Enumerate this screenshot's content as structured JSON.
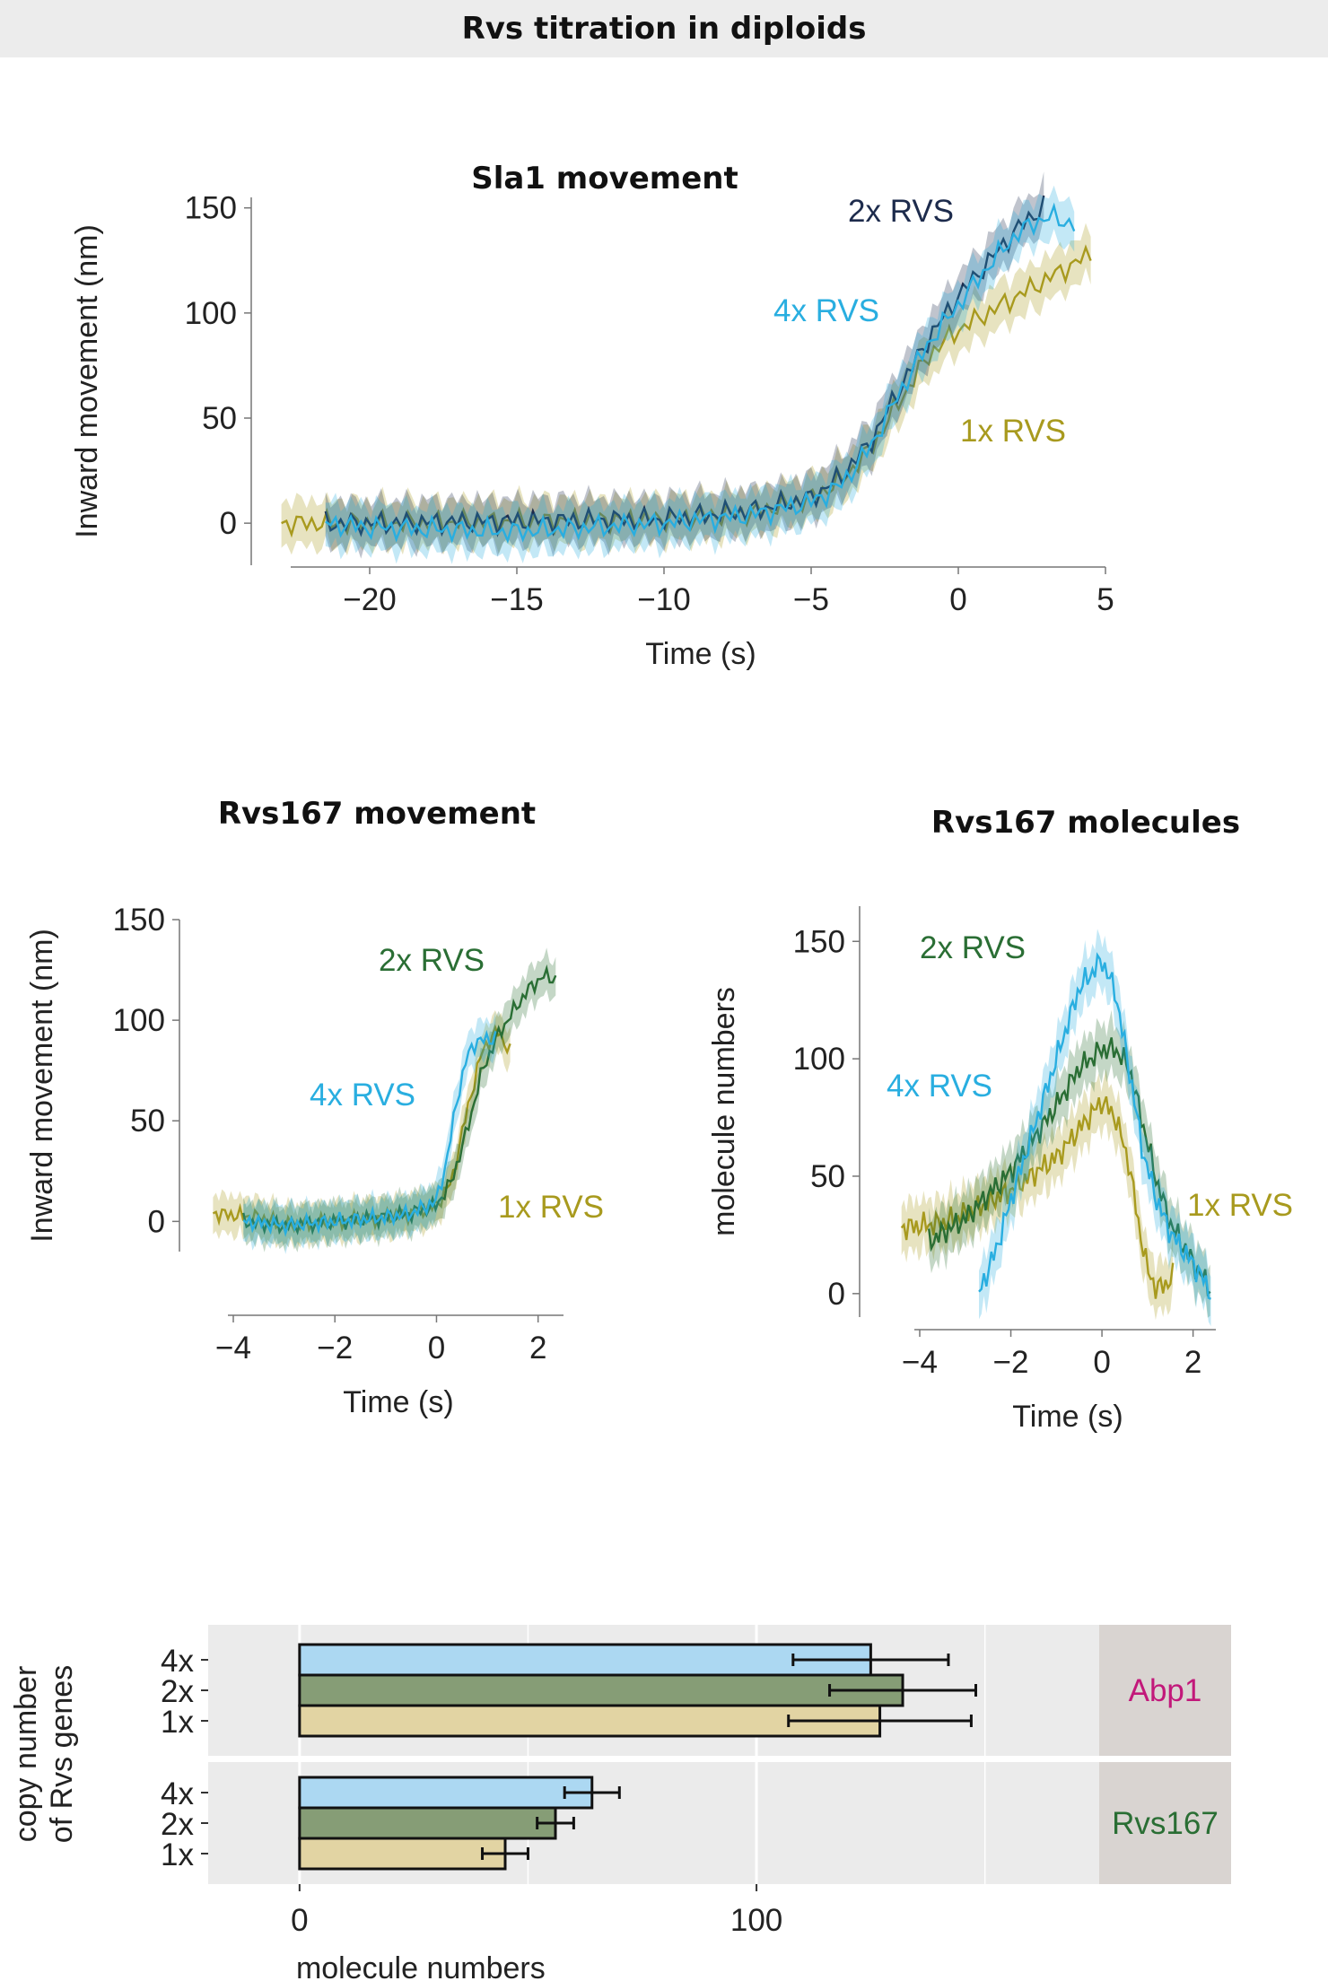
{
  "banner_title": "Rvs titration in diploids",
  "colors": {
    "1x": "#a89a1e",
    "2x_sla1": "#1d2b4c",
    "2x_rvs167": "#2a6e34",
    "4x": "#29aee0",
    "strip_abp1": "#c2187a",
    "strip_rvs167": "#2a6e34"
  },
  "chart_data": [
    {
      "type": "line",
      "title": "Sla1 movement",
      "xlabel": "Time (s)",
      "ylabel": "Inward movement (nm)",
      "xlim": [
        -22.5,
        5
      ],
      "ylim": [
        -20,
        155
      ],
      "xticks": [
        "−20",
        "−15",
        "−10",
        "−5",
        "0",
        "5"
      ],
      "yticks": [
        "0",
        "50",
        "100",
        "150"
      ],
      "legend": [
        "2x RVS",
        "4x RVS",
        "1x RVS"
      ],
      "series": [
        {
          "name": "1x RVS",
          "color": "#a89a1e",
          "x": [
            -23,
            -20,
            -15,
            -10,
            -7,
            -5,
            -4,
            -3,
            -2,
            -1,
            0,
            1,
            2,
            3,
            4,
            4.5
          ],
          "y": [
            0,
            0,
            1,
            2,
            5,
            12,
            20,
            35,
            58,
            80,
            92,
            100,
            108,
            116,
            124,
            128
          ]
        },
        {
          "name": "2x RVS",
          "color": "#1d2b4c",
          "x": [
            -21.5,
            -20,
            -15,
            -10,
            -7,
            -5,
            -4,
            -3,
            -2,
            -1,
            0,
            1,
            2,
            3
          ],
          "y": [
            0,
            0,
            1,
            2,
            6,
            12,
            22,
            38,
            64,
            88,
            108,
            124,
            140,
            152
          ]
        },
        {
          "name": "4x RVS",
          "color": "#29aee0",
          "x": [
            -21.5,
            -20,
            -15,
            -10,
            -7,
            -5,
            -4,
            -3,
            -2,
            -1,
            0,
            1,
            2,
            3,
            4
          ],
          "y": [
            0,
            -2,
            -4,
            0,
            4,
            10,
            18,
            36,
            62,
            86,
            104,
            122,
            138,
            146,
            142
          ]
        }
      ]
    },
    {
      "type": "line",
      "title": "Rvs167 movement",
      "xlabel": "Time (s)",
      "ylabel": "Inward movement (nm)",
      "xlim": [
        -4,
        2.5
      ],
      "ylim": [
        -15,
        150
      ],
      "xticks": [
        "−4",
        "−2",
        "0",
        "2"
      ],
      "yticks": [
        "0",
        "50",
        "100",
        "150"
      ],
      "legend": [
        "2x RVS",
        "4x RVS",
        "1x RVS"
      ],
      "series": [
        {
          "name": "1x RVS",
          "color": "#a89a1e",
          "x": [
            -4.4,
            -3.5,
            -3,
            -2,
            -1,
            -0.5,
            0,
            0.3,
            0.6,
            0.9,
            1.2,
            1.5
          ],
          "y": [
            4,
            2,
            -2,
            0,
            2,
            4,
            8,
            20,
            55,
            85,
            95,
            82
          ]
        },
        {
          "name": "2x RVS",
          "color": "#2a6e34",
          "x": [
            -3.8,
            -3,
            -2,
            -1,
            -0.5,
            0,
            0.3,
            0.6,
            0.9,
            1.2,
            1.5,
            1.8,
            2.1,
            2.4
          ],
          "y": [
            0,
            -2,
            0,
            2,
            4,
            8,
            20,
            45,
            75,
            92,
            104,
            115,
            122,
            120
          ]
        },
        {
          "name": "4x RVS",
          "color": "#29aee0",
          "x": [
            -3.8,
            -3,
            -2,
            -1,
            -0.5,
            0,
            0.2,
            0.4,
            0.6,
            0.8,
            1.0,
            1.2
          ],
          "y": [
            0,
            -2,
            0,
            2,
            4,
            10,
            30,
            60,
            82,
            90,
            90,
            92
          ]
        }
      ]
    },
    {
      "type": "line",
      "title": "Rvs167 molecules",
      "xlabel": "Time (s)",
      "ylabel": "molecule numbers",
      "xlim": [
        -4,
        2.5
      ],
      "ylim": [
        -10,
        165
      ],
      "xticks": [
        "−4",
        "−2",
        "0",
        "2"
      ],
      "yticks": [
        "0",
        "50",
        "100",
        "150"
      ],
      "legend": [
        "2x RVS",
        "4x RVS",
        "1x RVS"
      ],
      "series": [
        {
          "name": "1x RVS",
          "color": "#a89a1e",
          "x": [
            -4.4,
            -3.5,
            -3,
            -2,
            -1,
            -0.5,
            0,
            0.3,
            0.6,
            0.8,
            1.0,
            1.2,
            1.4,
            1.6
          ],
          "y": [
            28,
            30,
            34,
            44,
            58,
            70,
            82,
            75,
            55,
            30,
            10,
            2,
            4,
            8
          ]
        },
        {
          "name": "2x RVS",
          "color": "#2a6e34",
          "x": [
            -3.8,
            -3,
            -2,
            -1,
            -0.5,
            0,
            0.3,
            0.6,
            0.9,
            1.2,
            1.5,
            1.8,
            2.1,
            2.4
          ],
          "y": [
            22,
            32,
            52,
            80,
            96,
            104,
            104,
            96,
            72,
            48,
            30,
            20,
            10,
            2
          ]
        },
        {
          "name": "4x RVS",
          "color": "#29aee0",
          "x": [
            -2.7,
            -2.3,
            -2,
            -1.5,
            -1,
            -0.5,
            0,
            0.3,
            0.6,
            0.9,
            1.2,
            1.5,
            1.8,
            2.1,
            2.4
          ],
          "y": [
            0,
            20,
            40,
            70,
            100,
            130,
            142,
            128,
            95,
            60,
            40,
            26,
            18,
            10,
            0
          ]
        }
      ]
    },
    {
      "type": "bar",
      "orientation": "horizontal",
      "xlabel": "molecule numbers",
      "ylabel": "copy number of Rvs genes",
      "xlim": [
        -20,
        175
      ],
      "xticks": [
        "0",
        "100"
      ],
      "categories": [
        "4x",
        "2x",
        "1x"
      ],
      "panels": [
        {
          "label": "Abp1",
          "values": [
            125,
            132,
            127
          ],
          "errors": [
            17,
            16,
            20
          ]
        },
        {
          "label": "Rvs167",
          "values": [
            64,
            56,
            45
          ],
          "errors": [
            6,
            4,
            5
          ]
        }
      ],
      "bar_colors": [
        "#acd8f2",
        "#869d76",
        "#e2d4a3"
      ]
    }
  ]
}
